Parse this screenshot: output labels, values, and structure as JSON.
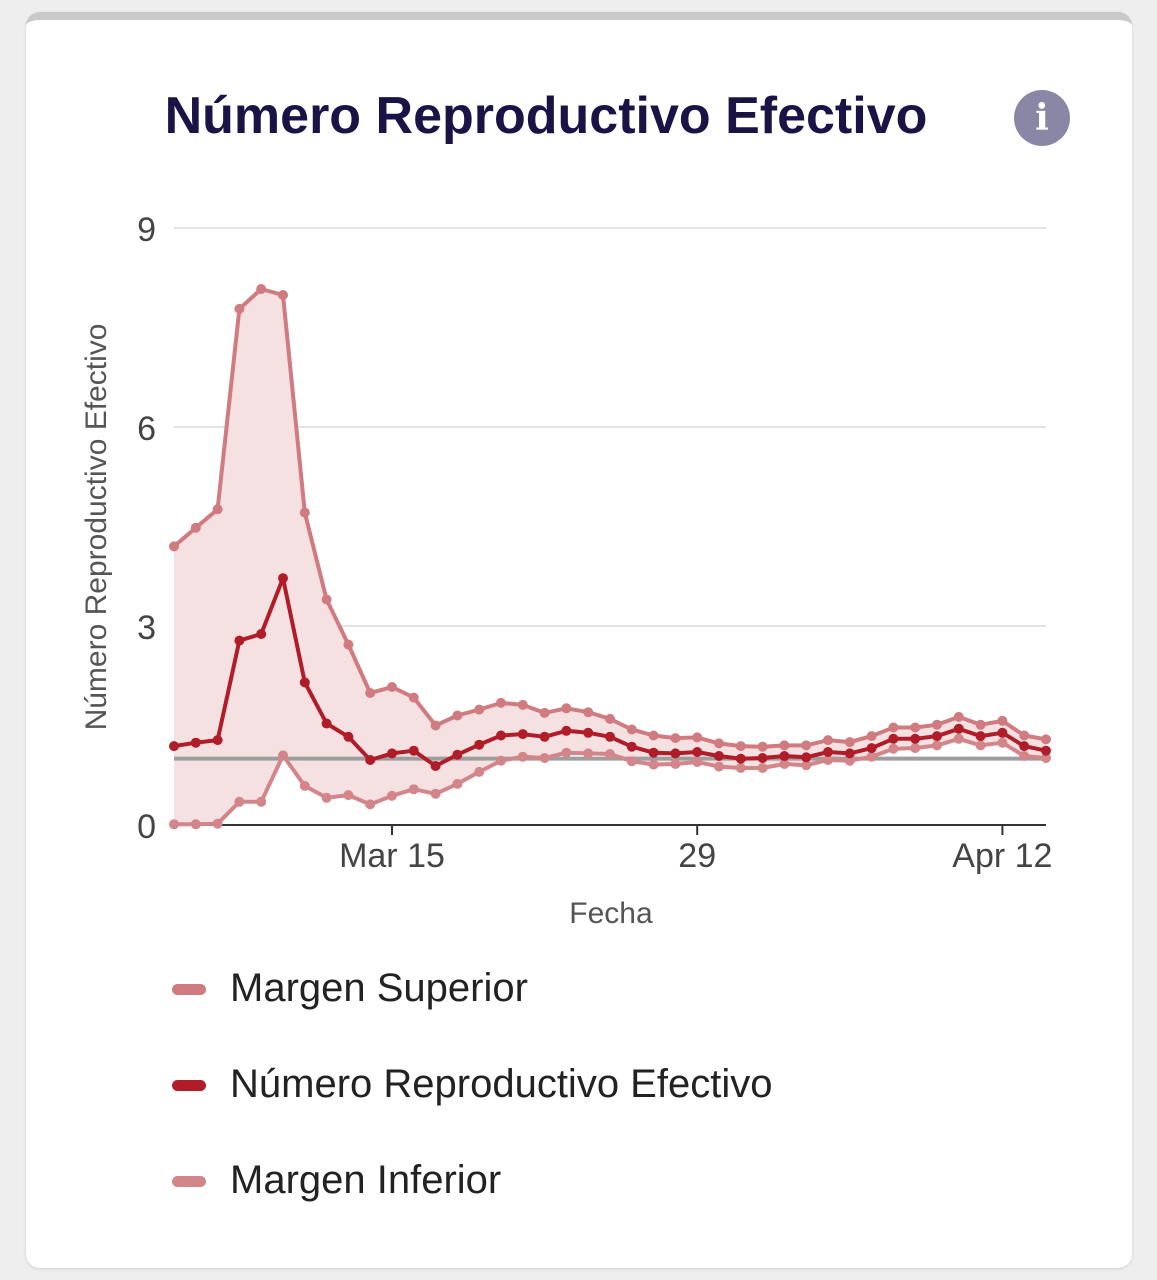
{
  "card": {
    "title": "Número Reproductivo Efectivo",
    "info_icon": "info-icon",
    "info_glyph": "i"
  },
  "colors": {
    "upper": "#cf7b80",
    "main": "#b01c28",
    "lower": "#d3868a",
    "band": "#f6e1e2",
    "reference": "#9e9e9e",
    "grid": "#e3e3e3",
    "title": "#1a1446"
  },
  "chart_data": {
    "type": "line",
    "title": "Número Reproductivo Efectivo",
    "xlabel": "Fecha",
    "ylabel": "Número Reproductivo Efectivo",
    "x_start": "2020-03-05",
    "x_end": "2020-04-14",
    "ylim": [
      0,
      9
    ],
    "yticks": [
      0,
      3,
      6,
      9
    ],
    "xticks": [
      {
        "date": "2020-03-15",
        "label": "Mar 15"
      },
      {
        "date": "2020-03-29",
        "label": "29"
      },
      {
        "date": "2020-04-12",
        "label": "Apr 12"
      }
    ],
    "reference_line": 1,
    "grid": true,
    "legend_position": "bottom",
    "dates": [
      "2020-03-05",
      "2020-03-06",
      "2020-03-07",
      "2020-03-08",
      "2020-03-09",
      "2020-03-10",
      "2020-03-11",
      "2020-03-12",
      "2020-03-13",
      "2020-03-14",
      "2020-03-15",
      "2020-03-16",
      "2020-03-17",
      "2020-03-18",
      "2020-03-19",
      "2020-03-20",
      "2020-03-21",
      "2020-03-22",
      "2020-03-23",
      "2020-03-24",
      "2020-03-25",
      "2020-03-26",
      "2020-03-27",
      "2020-03-28",
      "2020-03-29",
      "2020-03-30",
      "2020-03-31",
      "2020-04-01",
      "2020-04-02",
      "2020-04-03",
      "2020-04-04",
      "2020-04-05",
      "2020-04-06",
      "2020-04-07",
      "2020-04-08",
      "2020-04-09",
      "2020-04-10",
      "2020-04-11",
      "2020-04-12",
      "2020-04-13",
      "2020-04-14"
    ],
    "series": [
      {
        "name": "Margen Superior",
        "color": "#cf7b80",
        "values": [
          4.2,
          4.48,
          4.76,
          7.78,
          8.08,
          7.99,
          4.71,
          3.4,
          2.72,
          1.99,
          2.08,
          1.92,
          1.5,
          1.65,
          1.74,
          1.84,
          1.81,
          1.69,
          1.76,
          1.7,
          1.6,
          1.44,
          1.35,
          1.31,
          1.32,
          1.23,
          1.19,
          1.18,
          1.2,
          1.2,
          1.28,
          1.25,
          1.34,
          1.47,
          1.47,
          1.51,
          1.63,
          1.51,
          1.57,
          1.35,
          1.29
        ]
      },
      {
        "name": "Número Reproductivo Efectivo",
        "color": "#b01c28",
        "values": [
          1.19,
          1.24,
          1.28,
          2.78,
          2.88,
          3.72,
          2.15,
          1.53,
          1.33,
          0.98,
          1.08,
          1.12,
          0.89,
          1.06,
          1.21,
          1.35,
          1.37,
          1.33,
          1.42,
          1.39,
          1.33,
          1.18,
          1.09,
          1.08,
          1.1,
          1.04,
          1.0,
          1.01,
          1.04,
          1.02,
          1.1,
          1.08,
          1.16,
          1.3,
          1.3,
          1.34,
          1.45,
          1.34,
          1.39,
          1.19,
          1.12
        ]
      },
      {
        "name": "Margen Inferior",
        "color": "#d3868a",
        "values": [
          0.01,
          0.01,
          0.02,
          0.35,
          0.35,
          1.05,
          0.59,
          0.41,
          0.45,
          0.31,
          0.44,
          0.54,
          0.47,
          0.62,
          0.8,
          0.97,
          1.03,
          1.01,
          1.09,
          1.08,
          1.07,
          0.96,
          0.91,
          0.92,
          0.95,
          0.88,
          0.86,
          0.86,
          0.92,
          0.9,
          0.98,
          0.97,
          1.03,
          1.15,
          1.16,
          1.2,
          1.3,
          1.2,
          1.24,
          1.04,
          1.01
        ]
      }
    ]
  }
}
